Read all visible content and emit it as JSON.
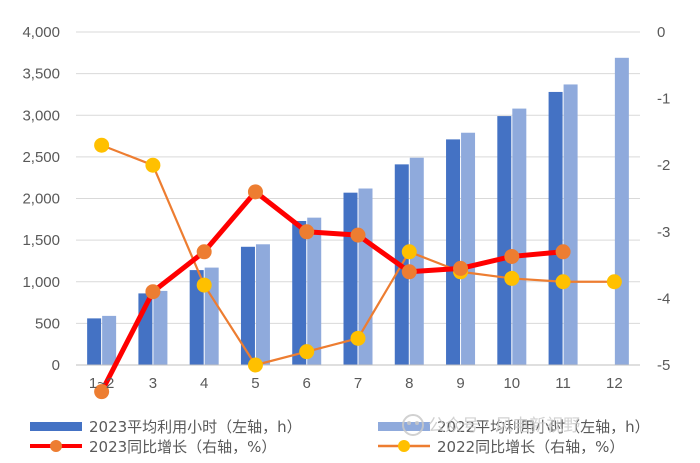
{
  "chart_data": {
    "type": "bar+line",
    "categories": [
      "1~2",
      "3",
      "4",
      "5",
      "6",
      "7",
      "8",
      "9",
      "10",
      "11",
      "12"
    ],
    "bar_series": [
      {
        "name": "2023平均利用小时（左轴，h）",
        "color": "#4472c4",
        "values": [
          560,
          860,
          1140,
          1420,
          1730,
          2070,
          2410,
          2710,
          2990,
          3280,
          null
        ]
      },
      {
        "name": "2022平均利用小时（左轴，h）",
        "color": "#8faadc",
        "values": [
          590,
          890,
          1170,
          1450,
          1770,
          2120,
          2490,
          2790,
          3080,
          3370,
          3690
        ]
      }
    ],
    "line_series": [
      {
        "name": "2023同比增长（右轴，%）",
        "line_color": "#ff0000",
        "marker_color": "#ed7d31",
        "values": [
          -5.4,
          -3.9,
          -3.3,
          -2.4,
          -3.0,
          -3.05,
          -3.6,
          -3.55,
          -3.37,
          -3.3,
          null
        ]
      },
      {
        "name": "2022同比增长（右轴，%）",
        "line_color": "#ed7d31",
        "marker_color": "#ffc000",
        "values": [
          -1.7,
          -2.0,
          -3.8,
          -5.0,
          -4.8,
          -4.6,
          -3.3,
          -3.6,
          -3.7,
          -3.75,
          -3.75
        ]
      }
    ],
    "y_left": {
      "min": 0,
      "max": 4000,
      "step": 500,
      "ticks": [
        "0",
        "500",
        "1,000",
        "1,500",
        "2,000",
        "2,500",
        "3,000",
        "3,500",
        "4,000"
      ]
    },
    "y_right": {
      "min": -5,
      "max": 0,
      "step": 1,
      "ticks": [
        "-5",
        "-4",
        "-3",
        "-2",
        "-1",
        "0"
      ]
    },
    "grid": "horizontal",
    "legend_position": "bottom"
  },
  "watermark": "公众号 · 风电新视野"
}
